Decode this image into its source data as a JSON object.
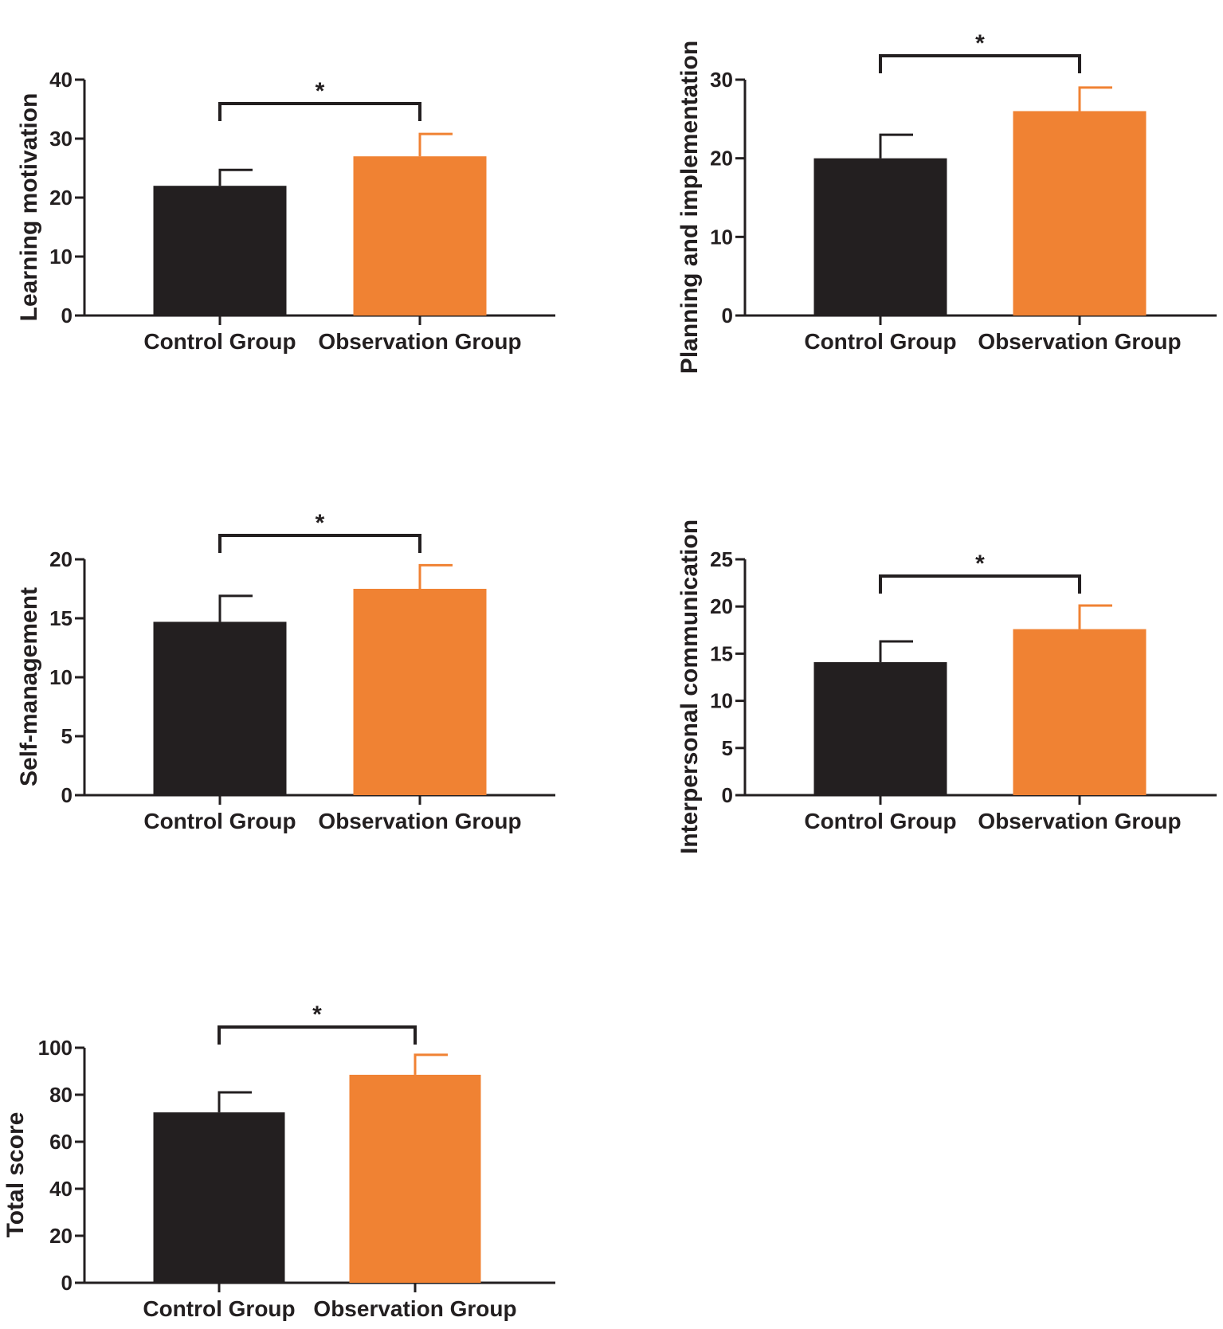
{
  "colors": {
    "control": "#231f20",
    "observation": "#f08233",
    "axis": "#231f20"
  },
  "chart_data": [
    {
      "type": "bar",
      "title": "",
      "ylabel": "Learning motivation",
      "categories": [
        "Control Group",
        "Observation Group"
      ],
      "values": [
        22,
        27
      ],
      "errors": [
        2.7,
        3.8
      ],
      "ylim": [
        0,
        40
      ],
      "yticks": [
        0,
        10,
        20,
        30,
        40
      ],
      "significance": "*"
    },
    {
      "type": "bar",
      "title": "",
      "ylabel": "Planning and implementation",
      "categories": [
        "Control Group",
        "Observation Group"
      ],
      "values": [
        20,
        26
      ],
      "errors": [
        3,
        3
      ],
      "ylim": [
        0,
        30
      ],
      "yticks": [
        0,
        10,
        20,
        30
      ],
      "significance": "*"
    },
    {
      "type": "bar",
      "title": "",
      "ylabel": "Self-management",
      "categories": [
        "Control Group",
        "Observation Group"
      ],
      "values": [
        14.7,
        17.5
      ],
      "errors": [
        2.2,
        2
      ],
      "ylim": [
        0,
        20
      ],
      "yticks": [
        0,
        5,
        10,
        15,
        20
      ],
      "significance": "*"
    },
    {
      "type": "bar",
      "title": "",
      "ylabel": "Interpersonal communication",
      "categories": [
        "Control Group",
        "Observation Group"
      ],
      "values": [
        14.1,
        17.6
      ],
      "errors": [
        2.2,
        2.5
      ],
      "ylim": [
        0,
        25
      ],
      "yticks": [
        0,
        5,
        10,
        15,
        20,
        25
      ],
      "significance": "*"
    },
    {
      "type": "bar",
      "title": "",
      "ylabel": "Total score",
      "categories": [
        "Control Group",
        "Observation Group"
      ],
      "values": [
        72.5,
        88.5
      ],
      "errors": [
        8.5,
        8.5
      ],
      "ylim": [
        0,
        100
      ],
      "yticks": [
        0,
        20,
        40,
        60,
        80,
        100
      ],
      "significance": "*"
    }
  ]
}
